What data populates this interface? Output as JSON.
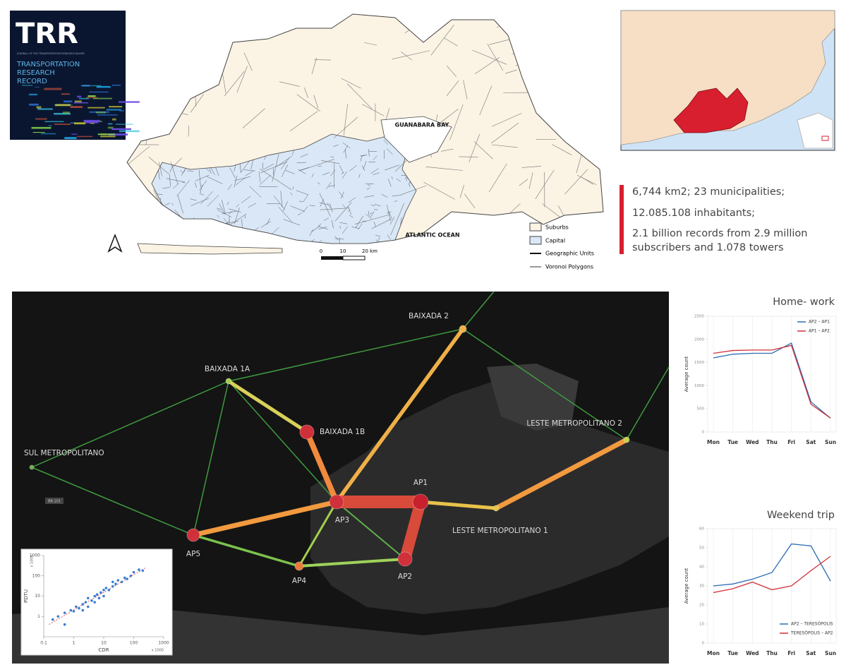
{
  "cover": {
    "logo": "TRR",
    "subtitle": "JOURNAL OF THE TRANSPORTATION RESEARCH BOARD",
    "title_lines": [
      "TRANSPORTATION",
      "RESEARCH",
      "RECORD"
    ]
  },
  "study_area_map": {
    "labels": [
      "GUANABARA BAY",
      "ATLANTIC OCEAN"
    ],
    "scale": [
      "0",
      "10",
      "20 km"
    ],
    "legend": [
      "Suburbs",
      "Capital",
      "Geographic Units",
      "Voronoi Polygons"
    ]
  },
  "stats": {
    "lines": [
      "6,744 km2; 23 municipalities;",
      "12.085.108 inhabitants;",
      "2.1 billion records from 2.9 million",
      "subscribers and 1.078 towers"
    ]
  },
  "network": {
    "nodes": [
      "BAIXADA 2",
      "BAIXADA 1A",
      "BAIXADA 1B",
      "SUL METROPOLITANO",
      "LESTE METROPOLITANO 2",
      "AP1",
      "AP3",
      "LESTE METROPOLITANO 1",
      "AP5",
      "AP4",
      "AP2"
    ],
    "road_label": "BR-101"
  },
  "chart_data": [
    {
      "type": "scatter",
      "xlabel": "CDR",
      "ylabel": "PDTU",
      "annotations": [
        "x 1000",
        "x 1000"
      ],
      "log_scale": true,
      "color": "#3a7fd0",
      "x": [
        0.2,
        0.3,
        0.5,
        0.5,
        0.8,
        1,
        1.2,
        1.5,
        2,
        2,
        2.5,
        3,
        3,
        4,
        5,
        5,
        6,
        7,
        8,
        10,
        10,
        12,
        15,
        20,
        20,
        25,
        30,
        40,
        50,
        60,
        80,
        100,
        150,
        200
      ],
      "values": [
        0.7,
        1,
        1.5,
        0.4,
        2,
        1.8,
        3,
        2.5,
        4,
        2,
        5,
        8,
        3,
        6,
        10,
        5,
        12,
        8,
        15,
        20,
        10,
        25,
        20,
        30,
        50,
        40,
        60,
        50,
        80,
        70,
        100,
        150,
        200,
        180
      ],
      "xlim": [
        0.1,
        1000
      ],
      "xticks": [
        0.1,
        1,
        10,
        100,
        1000
      ],
      "ylim": [
        0.1,
        1000
      ],
      "yticks": [
        1,
        10,
        100,
        1000
      ]
    },
    {
      "type": "line",
      "title": "Home- work",
      "ylabel": "Average count",
      "categories": [
        "Mon",
        "Tue",
        "Wed",
        "Thu",
        "Fri",
        "Sat",
        "Sun"
      ],
      "series": [
        {
          "name": "AP2 – AP1",
          "color": "#2e6db4",
          "values": [
            1600,
            1680,
            1700,
            1700,
            1920,
            650,
            300
          ]
        },
        {
          "name": "AP1 – AP2",
          "color": "#d0323a",
          "values": [
            1700,
            1760,
            1770,
            1770,
            1870,
            600,
            300
          ]
        }
      ],
      "ylim": [
        0,
        2500
      ],
      "yticks": [
        0,
        500,
        1000,
        1500,
        2000,
        2500
      ],
      "grid": true,
      "legend": "upper-right"
    },
    {
      "type": "line",
      "title": "Weekend trip",
      "ylabel": "Average count",
      "categories": [
        "Mon",
        "Tue",
        "Wed",
        "Thu",
        "Fri",
        "Sat",
        "Sun"
      ],
      "series": [
        {
          "name": "AP2 – TERESÓPOLIS",
          "color": "#2e6db4",
          "values": [
            30,
            31,
            33.5,
            37,
            52,
            51,
            32.5
          ]
        },
        {
          "name": "TERESÓPOLIS – AP2",
          "color": "#d0323a",
          "values": [
            26.5,
            28.5,
            32,
            28,
            30,
            38,
            45.5
          ]
        }
      ],
      "ylim": [
        0,
        60
      ],
      "yticks": [
        0,
        10,
        20,
        30,
        40,
        50,
        60
      ],
      "grid": true,
      "legend": "lower-right"
    }
  ]
}
